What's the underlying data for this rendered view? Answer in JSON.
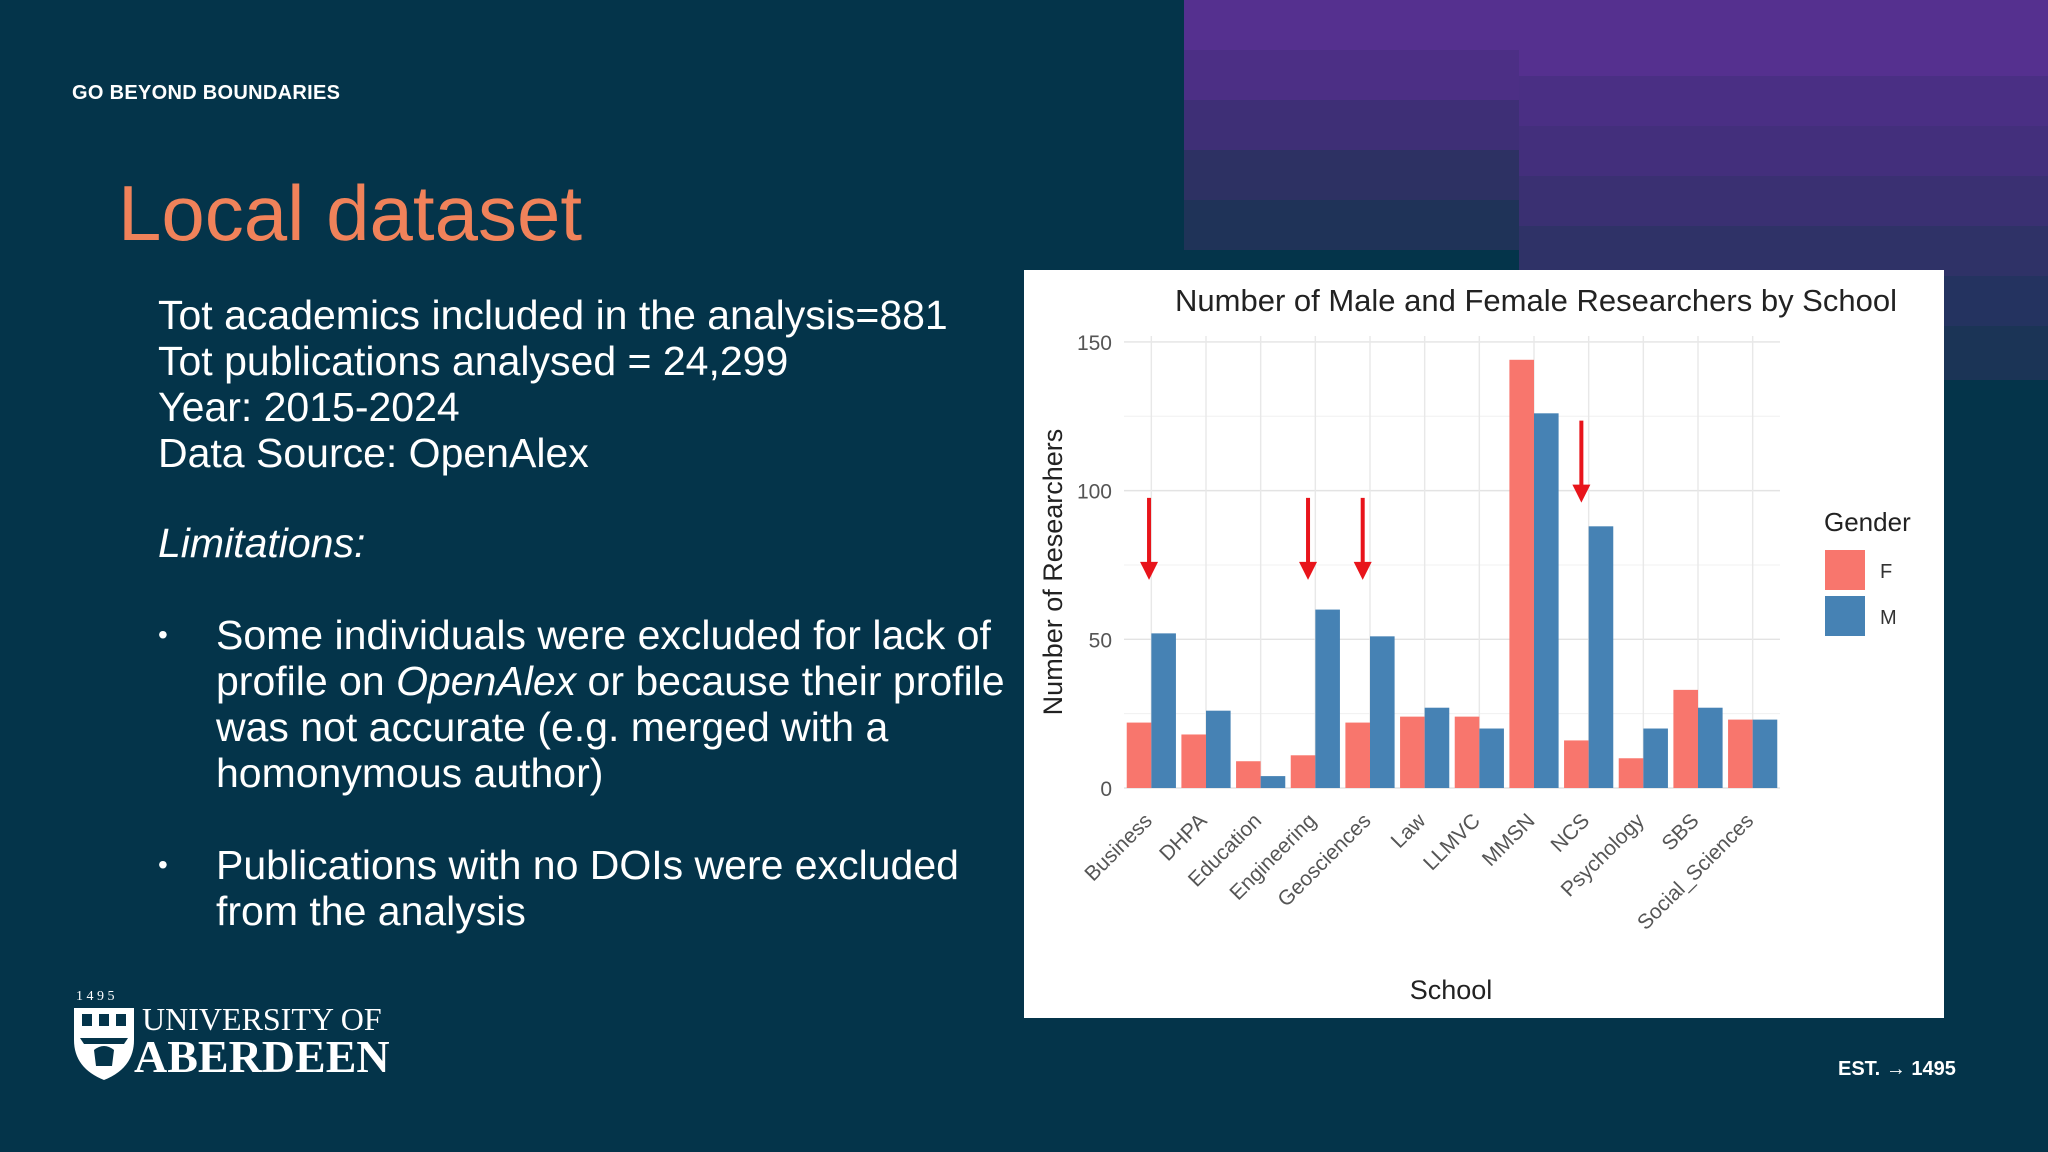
{
  "slide": {
    "tagline": "GO BEYOND BOUNDARIES",
    "title": "Local dataset",
    "stats": [
      "Tot academics included in the analysis=881",
      "Tot publications analysed = 24,299",
      "Year: 2015-2024",
      "Data Source: OpenAlex"
    ],
    "limitations_heading": "Limitations:",
    "bullets": [
      {
        "before": "Some individuals were excluded for lack of profile on ",
        "emph": "OpenAlex",
        "after": " or because their profile was not accurate (e.g. merged with a homonymous author)"
      },
      {
        "before": "Publications with no DOIs were excluded from the analysis",
        "emph": "",
        "after": ""
      }
    ],
    "logo": {
      "year": "1 4 9 5",
      "line1": "UNIVERSITY OF",
      "line2": "ABERDEEN"
    },
    "footer": {
      "est_label": "EST.",
      "arrow": "→",
      "est_year": "1495"
    }
  },
  "colors": {
    "background": "#04344a",
    "title": "#f0825a",
    "female": "#f8766d",
    "male": "#4682b4",
    "arrow": "#e8141b"
  },
  "chart_data": {
    "type": "bar",
    "title": "Number of Male and Female Researchers by School",
    "xlabel": "School",
    "ylabel": "Number of Researchers",
    "categories": [
      "Business",
      "DHPA",
      "Education",
      "Engineering",
      "Geosciences",
      "Law",
      "LLMVC",
      "MMSN",
      "NCS",
      "Psychology",
      "SBS",
      "Social_Sciences"
    ],
    "series": [
      {
        "name": "F",
        "values": [
          22,
          18,
          9,
          11,
          22,
          24,
          24,
          144,
          16,
          10,
          33,
          23
        ]
      },
      {
        "name": "M",
        "values": [
          52,
          26,
          4,
          60,
          51,
          27,
          20,
          126,
          88,
          20,
          27,
          23
        ]
      }
    ],
    "ylim": [
      0,
      152
    ],
    "yticks": [
      0,
      50,
      100,
      150
    ],
    "grid": true,
    "legend": {
      "title": "Gender",
      "position": "right"
    },
    "highlighted_categories": [
      "Business",
      "Engineering",
      "Geosciences",
      "NCS"
    ]
  }
}
